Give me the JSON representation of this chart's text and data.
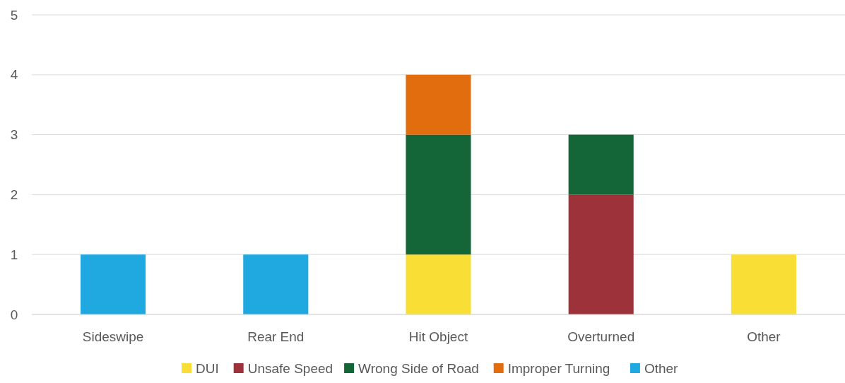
{
  "chart_data": {
    "type": "bar",
    "stacked": true,
    "categories": [
      "Sideswipe",
      "Rear End",
      "Hit Object",
      "Overturned",
      "Other"
    ],
    "series": [
      {
        "name": "DUI",
        "color": "#f9de36",
        "values": [
          0,
          0,
          1,
          0,
          1
        ]
      },
      {
        "name": "Unsafe Speed",
        "color": "#9e323a",
        "values": [
          0,
          0,
          0,
          2,
          0
        ]
      },
      {
        "name": "Wrong Side of Road",
        "color": "#146537",
        "values": [
          0,
          0,
          2,
          1,
          0
        ]
      },
      {
        "name": "Improper Turning",
        "color": "#e26d0e",
        "values": [
          0,
          0,
          1,
          0,
          0
        ]
      },
      {
        "name": "Other",
        "color": "#20a9e1",
        "values": [
          1,
          1,
          0,
          0,
          0
        ]
      }
    ],
    "ylim": [
      0,
      5
    ],
    "yticks": [
      0,
      1,
      2,
      3,
      4,
      5
    ],
    "grid": "y",
    "legend": "bottom"
  }
}
